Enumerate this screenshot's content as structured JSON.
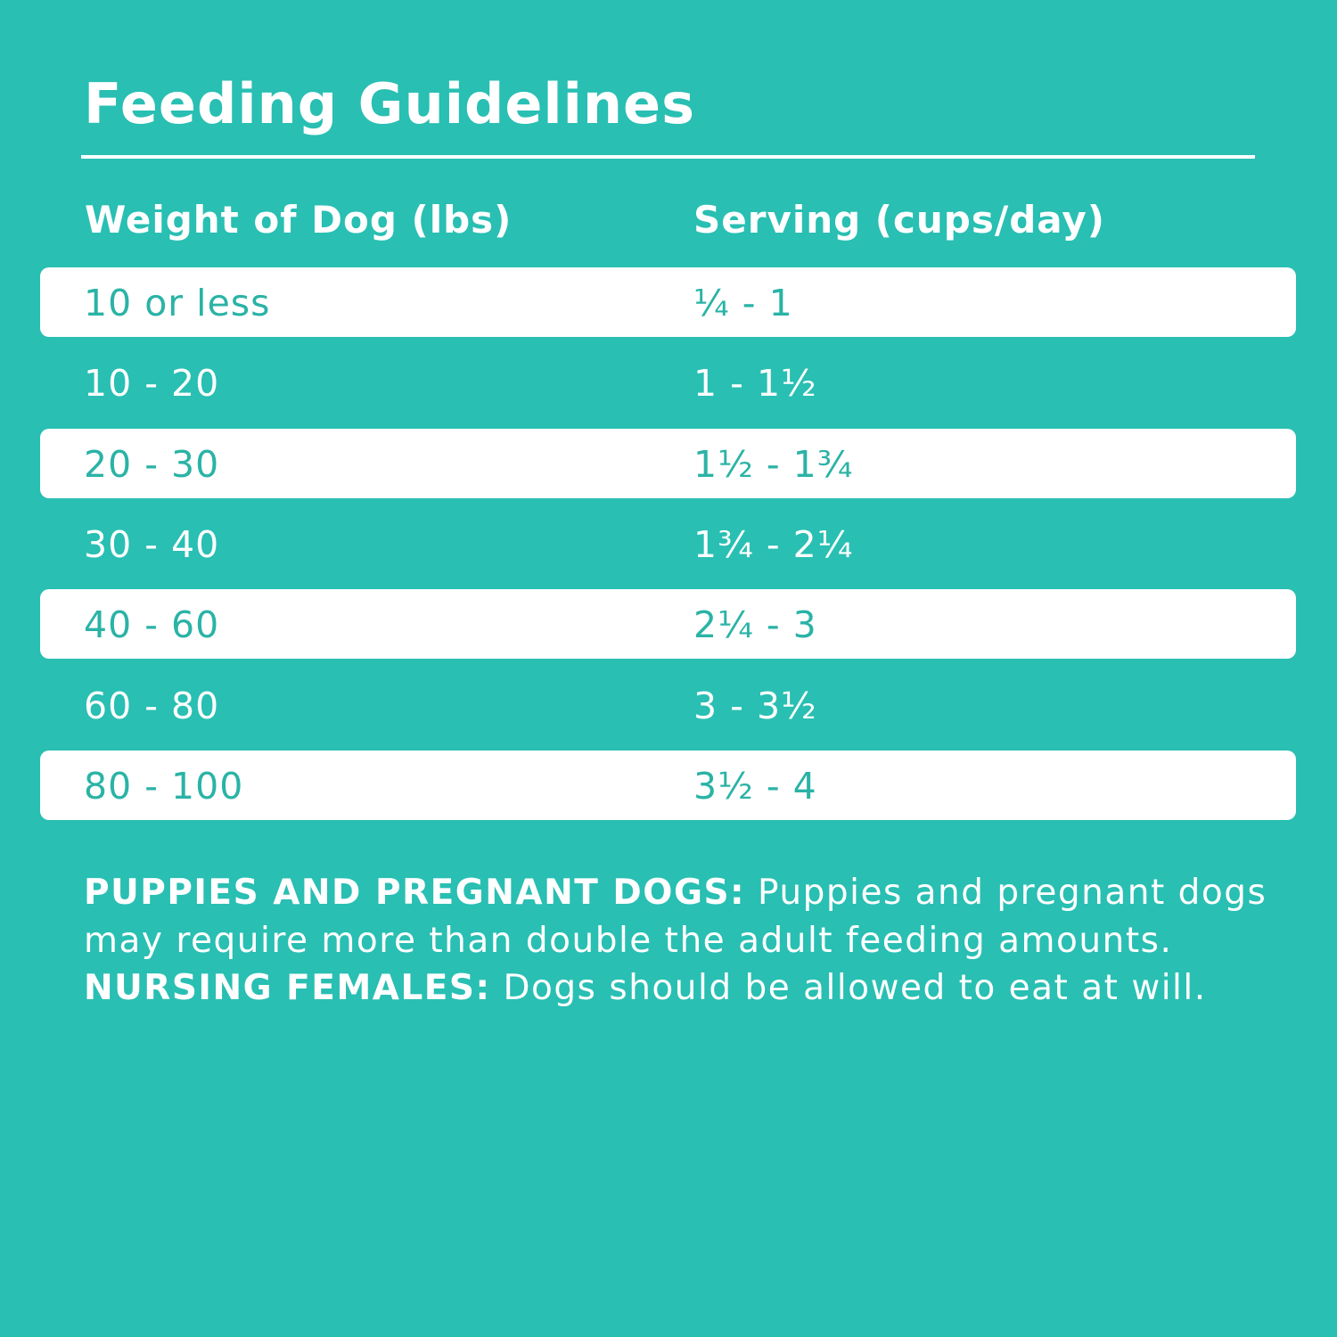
{
  "title": "Feeding Guidelines",
  "table": {
    "headers": [
      "Weight of Dog (lbs)",
      "Serving (cups/day)"
    ],
    "rows": [
      {
        "weight": "10 or less",
        "serving": "¼ - 1"
      },
      {
        "weight": "10 - 20",
        "serving": "1 - 1½"
      },
      {
        "weight": "20 - 30",
        "serving": "1½ - 1¾"
      },
      {
        "weight": "30 - 40",
        "serving": "1¾ - 2¼"
      },
      {
        "weight": "40 - 60",
        "serving": "2¼ - 3"
      },
      {
        "weight": "60 - 80",
        "serving": "3 - 3½"
      },
      {
        "weight": "80 - 100",
        "serving": "3½ - 4"
      }
    ]
  },
  "note": {
    "label1": "PUPPIES AND PREGNANT DOGS:",
    "text1": " Puppies and pregnant dogs may require more than double the adult feeding amounts. ",
    "label2": "NURSING FEMALES:",
    "text2": " Dogs should be allowed to eat at will."
  },
  "colors": {
    "background": "#29bfb3",
    "row_highlight": "#ffffff",
    "highlight_text": "#2ab3a6"
  }
}
